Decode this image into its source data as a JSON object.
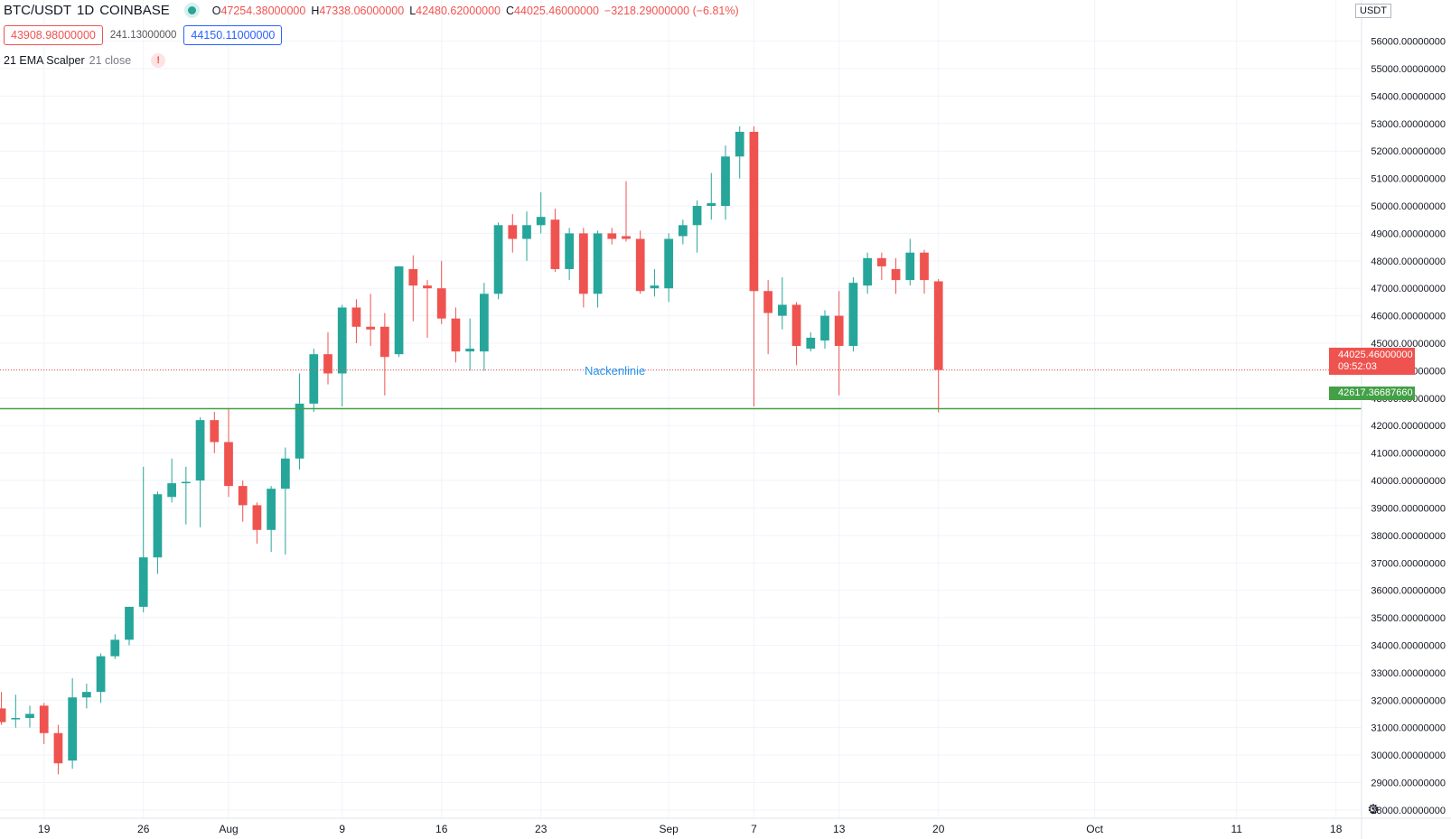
{
  "header": {
    "symbol": "BTC/USDT",
    "interval": "1D",
    "exchange": "COINBASE",
    "ohlc": {
      "o_label": "O",
      "o": "47254.38000000",
      "h_label": "H",
      "h": "47338.06000000",
      "l_label": "L",
      "l": "42480.62000000",
      "c_label": "C",
      "c": "44025.46000000",
      "change": "−3218.29000000 (−6.81%)"
    },
    "sell_price": "43908.98000000",
    "spread": "241.13000000",
    "buy_price": "44150.11000000",
    "indicator_name": "21 EMA Scalper",
    "indicator_params": "21 close",
    "warn_glyph": "!"
  },
  "price_axis": {
    "unit": "USDT",
    "last_price_tag": "44025.46000000",
    "countdown": "09:52:03",
    "neckline_tag": "42617.36687660"
  },
  "annotation": {
    "neckline_label": "Nackenlinie"
  },
  "colors": {
    "up": "#26a69a",
    "down": "#ef5350",
    "neckline": "#43a047",
    "label": "#2196f3"
  },
  "chart_data": {
    "type": "candlestick",
    "x_ticks": [
      {
        "label": "19",
        "day": 0
      },
      {
        "label": "26",
        "day": 7
      },
      {
        "label": "Aug",
        "day": 13
      },
      {
        "label": "9",
        "day": 21
      },
      {
        "label": "16",
        "day": 28
      },
      {
        "label": "23",
        "day": 35
      },
      {
        "label": "Sep",
        "day": 44
      },
      {
        "label": "7",
        "day": 50
      },
      {
        "label": "13",
        "day": 56
      },
      {
        "label": "20",
        "day": 63
      },
      {
        "label": "Oct",
        "day": 74
      },
      {
        "label": "11",
        "day": 84
      },
      {
        "label": "18",
        "day": 91
      }
    ],
    "y_ticks": [
      28000,
      29000,
      30000,
      31000,
      32000,
      33000,
      34000,
      35000,
      36000,
      37000,
      38000,
      39000,
      40000,
      41000,
      42000,
      43000,
      44000,
      45000,
      46000,
      47000,
      48000,
      49000,
      50000,
      51000,
      52000,
      53000,
      54000,
      55000,
      56000
    ],
    "y_tick_decimals": 8,
    "y_range": [
      27700,
      57500
    ],
    "x_range": [
      -3.1,
      92.8
    ],
    "neckline": 42617.3668766,
    "last_price": 44025.46,
    "candles": [
      {
        "d": -3,
        "o": 31700,
        "h": 32300,
        "l": 31100,
        "c": 31200
      },
      {
        "d": -2,
        "o": 31300,
        "h": 32200,
        "l": 31000,
        "c": 31350
      },
      {
        "d": -1,
        "o": 31350,
        "h": 31800,
        "l": 31000,
        "c": 31500
      },
      {
        "d": 0,
        "o": 31800,
        "h": 31900,
        "l": 30400,
        "c": 30800
      },
      {
        "d": 1,
        "o": 30800,
        "h": 31100,
        "l": 29300,
        "c": 29700
      },
      {
        "d": 2,
        "o": 29800,
        "h": 32800,
        "l": 29500,
        "c": 32100
      },
      {
        "d": 3,
        "o": 32100,
        "h": 32600,
        "l": 31700,
        "c": 32300
      },
      {
        "d": 4,
        "o": 32300,
        "h": 33700,
        "l": 31900,
        "c": 33600
      },
      {
        "d": 5,
        "o": 33600,
        "h": 34400,
        "l": 33500,
        "c": 34200
      },
      {
        "d": 6,
        "o": 34200,
        "h": 35400,
        "l": 34000,
        "c": 35400
      },
      {
        "d": 7,
        "o": 35400,
        "h": 40500,
        "l": 35200,
        "c": 37200
      },
      {
        "d": 8,
        "o": 37200,
        "h": 39600,
        "l": 36600,
        "c": 39500
      },
      {
        "d": 9,
        "o": 39400,
        "h": 40800,
        "l": 39200,
        "c": 39900
      },
      {
        "d": 10,
        "o": 39900,
        "h": 40500,
        "l": 38400,
        "c": 39950
      },
      {
        "d": 11,
        "o": 40000,
        "h": 42300,
        "l": 38300,
        "c": 42200
      },
      {
        "d": 12,
        "o": 42200,
        "h": 42500,
        "l": 41000,
        "c": 41400
      },
      {
        "d": 13,
        "o": 41400,
        "h": 42600,
        "l": 39400,
        "c": 39800
      },
      {
        "d": 14,
        "o": 39800,
        "h": 40000,
        "l": 38500,
        "c": 39100
      },
      {
        "d": 15,
        "o": 39100,
        "h": 39200,
        "l": 37700,
        "c": 38200
      },
      {
        "d": 16,
        "o": 38200,
        "h": 39800,
        "l": 37400,
        "c": 39700
      },
      {
        "d": 17,
        "o": 39700,
        "h": 41200,
        "l": 37300,
        "c": 40800
      },
      {
        "d": 18,
        "o": 40800,
        "h": 43900,
        "l": 40400,
        "c": 42800
      },
      {
        "d": 19,
        "o": 42800,
        "h": 44800,
        "l": 42500,
        "c": 44600
      },
      {
        "d": 20,
        "o": 44600,
        "h": 45400,
        "l": 43500,
        "c": 43900
      },
      {
        "d": 21,
        "o": 43900,
        "h": 46400,
        "l": 42700,
        "c": 46300
      },
      {
        "d": 22,
        "o": 46300,
        "h": 46600,
        "l": 45000,
        "c": 45600
      },
      {
        "d": 23,
        "o": 45600,
        "h": 46800,
        "l": 44900,
        "c": 45500
      },
      {
        "d": 24,
        "o": 45600,
        "h": 46100,
        "l": 43100,
        "c": 44500
      },
      {
        "d": 25,
        "o": 44600,
        "h": 47800,
        "l": 44500,
        "c": 47800
      },
      {
        "d": 26,
        "o": 47700,
        "h": 48200,
        "l": 45800,
        "c": 47100
      },
      {
        "d": 27,
        "o": 47100,
        "h": 47300,
        "l": 45200,
        "c": 47000
      },
      {
        "d": 28,
        "o": 47000,
        "h": 48000,
        "l": 45700,
        "c": 45900
      },
      {
        "d": 29,
        "o": 45900,
        "h": 46300,
        "l": 44300,
        "c": 44700
      },
      {
        "d": 30,
        "o": 44700,
        "h": 45900,
        "l": 44000,
        "c": 44800
      },
      {
        "d": 31,
        "o": 44700,
        "h": 47200,
        "l": 44000,
        "c": 46800
      },
      {
        "d": 32,
        "o": 46800,
        "h": 49400,
        "l": 46600,
        "c": 49300
      },
      {
        "d": 33,
        "o": 49300,
        "h": 49700,
        "l": 48300,
        "c": 48800
      },
      {
        "d": 34,
        "o": 48800,
        "h": 49800,
        "l": 48000,
        "c": 49300
      },
      {
        "d": 35,
        "o": 49300,
        "h": 50500,
        "l": 49000,
        "c": 49600
      },
      {
        "d": 36,
        "o": 49500,
        "h": 49900,
        "l": 47600,
        "c": 47700
      },
      {
        "d": 37,
        "o": 47700,
        "h": 49200,
        "l": 47300,
        "c": 49000
      },
      {
        "d": 38,
        "o": 49000,
        "h": 49200,
        "l": 46300,
        "c": 46800
      },
      {
        "d": 39,
        "o": 46800,
        "h": 49100,
        "l": 46300,
        "c": 49000
      },
      {
        "d": 40,
        "o": 49000,
        "h": 49200,
        "l": 48600,
        "c": 48800
      },
      {
        "d": 41,
        "o": 48900,
        "h": 50900,
        "l": 48700,
        "c": 48800
      },
      {
        "d": 42,
        "o": 48800,
        "h": 49100,
        "l": 46800,
        "c": 46900
      },
      {
        "d": 43,
        "o": 47000,
        "h": 47700,
        "l": 46700,
        "c": 47100
      },
      {
        "d": 44,
        "o": 47000,
        "h": 49000,
        "l": 46500,
        "c": 48800
      },
      {
        "d": 45,
        "o": 48900,
        "h": 49500,
        "l": 48600,
        "c": 49300
      },
      {
        "d": 46,
        "o": 49300,
        "h": 50200,
        "l": 48300,
        "c": 50000
      },
      {
        "d": 47,
        "o": 50000,
        "h": 51200,
        "l": 49500,
        "c": 50100
      },
      {
        "d": 48,
        "o": 50000,
        "h": 52200,
        "l": 49500,
        "c": 51800
      },
      {
        "d": 49,
        "o": 51800,
        "h": 52900,
        "l": 51000,
        "c": 52700
      },
      {
        "d": 50,
        "o": 52700,
        "h": 52900,
        "l": 42700,
        "c": 46900
      },
      {
        "d": 51,
        "o": 46900,
        "h": 47300,
        "l": 44600,
        "c": 46100
      },
      {
        "d": 52,
        "o": 46000,
        "h": 47400,
        "l": 45500,
        "c": 46400
      },
      {
        "d": 53,
        "o": 46400,
        "h": 46500,
        "l": 44200,
        "c": 44900
      },
      {
        "d": 54,
        "o": 44800,
        "h": 45400,
        "l": 44700,
        "c": 45200
      },
      {
        "d": 55,
        "o": 45100,
        "h": 46200,
        "l": 44800,
        "c": 46000
      },
      {
        "d": 56,
        "o": 46000,
        "h": 46900,
        "l": 43100,
        "c": 44900
      },
      {
        "d": 57,
        "o": 44900,
        "h": 47400,
        "l": 44700,
        "c": 47200
      },
      {
        "d": 58,
        "o": 47100,
        "h": 48300,
        "l": 46800,
        "c": 48100
      },
      {
        "d": 59,
        "o": 48100,
        "h": 48300,
        "l": 47300,
        "c": 47800
      },
      {
        "d": 60,
        "o": 47700,
        "h": 48100,
        "l": 46800,
        "c": 47300
      },
      {
        "d": 61,
        "o": 47300,
        "h": 48800,
        "l": 47100,
        "c": 48300
      },
      {
        "d": 62,
        "o": 48300,
        "h": 48400,
        "l": 46800,
        "c": 47300
      },
      {
        "d": 63,
        "o": 47254.38,
        "h": 47338.06,
        "l": 42480.62,
        "c": 44025.46
      }
    ]
  }
}
